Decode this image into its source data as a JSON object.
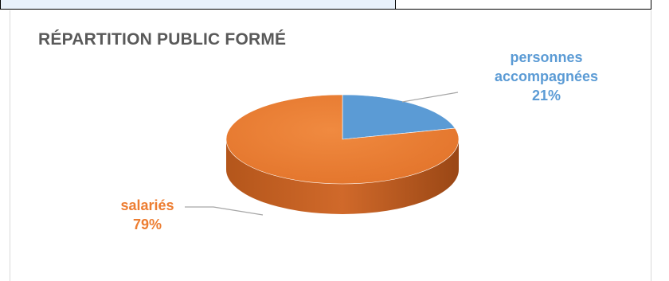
{
  "chart_data": {
    "type": "pie",
    "title": "RÉPARTITION PUBLIC FORMÉ",
    "slices": [
      {
        "name": "personnes accompagnées",
        "name_line1": "personnes",
        "name_line2": "accompagnées",
        "value": 21,
        "percent": "21%",
        "color": "#5b9bd5"
      },
      {
        "name": "salariés",
        "value": 79,
        "percent": "79%",
        "color": "#ed7d31"
      }
    ],
    "legend": "none",
    "style": "3d"
  }
}
